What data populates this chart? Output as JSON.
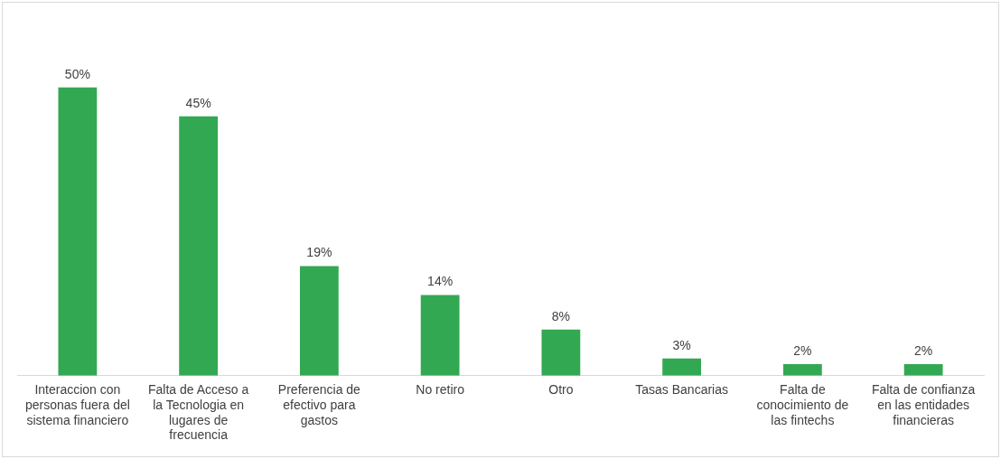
{
  "chart_data": {
    "type": "bar",
    "categories": [
      "Interaccion con personas fuera del sistema financiero",
      "Falta de Acceso a la Tecnologia en lugares de frecuencia",
      "Preferencia de efectivo para gastos",
      "No retiro",
      "Otro",
      "Tasas Bancarias",
      "Falta de conocimiento de las fintechs",
      "Falta de confianza en las entidades financieras"
    ],
    "values": [
      50,
      45,
      19,
      14,
      8,
      3,
      2,
      2
    ],
    "value_labels": [
      "50%",
      "45%",
      "19%",
      "14%",
      "8%",
      "3%",
      "2%",
      "2%"
    ],
    "color": "#33a852",
    "grid": false,
    "legend": false
  }
}
